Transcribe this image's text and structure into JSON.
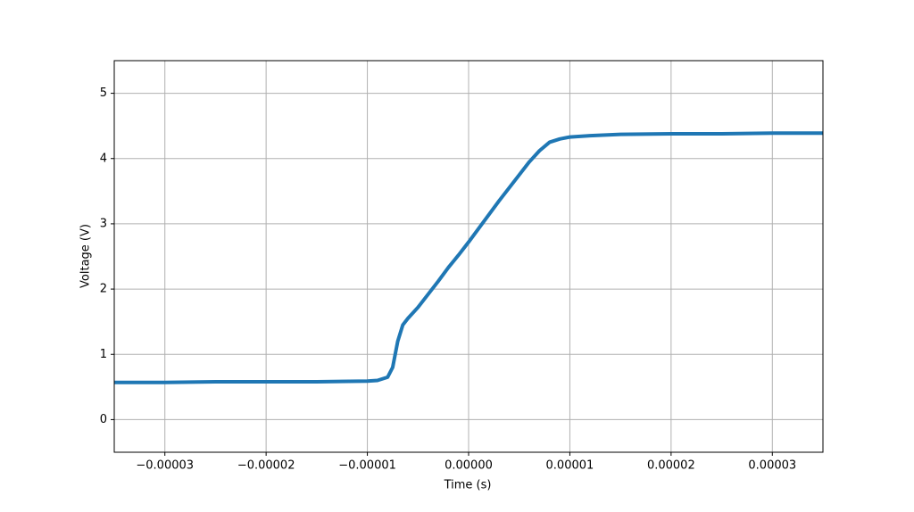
{
  "chart_data": {
    "type": "line",
    "xlabel": "Time (s)",
    "ylabel": "Voltage (V)",
    "x": [
      -3.5e-05,
      -3e-05,
      -2.5e-05,
      -2e-05,
      -1.5e-05,
      -1e-05,
      -9e-06,
      -8e-06,
      -7.5e-06,
      -7e-06,
      -6.5e-06,
      -6e-06,
      -5e-06,
      -4e-06,
      -3e-06,
      -2e-06,
      -1e-06,
      0,
      1e-06,
      2e-06,
      3e-06,
      4e-06,
      5e-06,
      6e-06,
      7e-06,
      8e-06,
      9e-06,
      1e-05,
      1.2e-05,
      1.5e-05,
      2e-05,
      2.5e-05,
      3e-05,
      3.5e-05
    ],
    "series": [
      {
        "color": "#1f77b4",
        "values": [
          0.57,
          0.57,
          0.58,
          0.58,
          0.58,
          0.59,
          0.6,
          0.65,
          0.8,
          1.2,
          1.45,
          1.55,
          1.72,
          1.92,
          2.12,
          2.33,
          2.52,
          2.72,
          2.93,
          3.14,
          3.35,
          3.55,
          3.75,
          3.95,
          4.12,
          4.25,
          4.3,
          4.33,
          4.35,
          4.37,
          4.38,
          4.38,
          4.39,
          4.39
        ]
      }
    ],
    "xlim": [
      -3.5e-05,
      3.5e-05
    ],
    "xticks": [
      {
        "value": -3e-05,
        "label": "−0.00003"
      },
      {
        "value": -2e-05,
        "label": "−0.00002"
      },
      {
        "value": -1e-05,
        "label": "−0.00001"
      },
      {
        "value": 0,
        "label": "0.00000"
      },
      {
        "value": 1e-05,
        "label": "0.00001"
      },
      {
        "value": 2e-05,
        "label": "0.00002"
      },
      {
        "value": 3e-05,
        "label": "0.00003"
      }
    ],
    "ylim": [
      -0.5,
      5.5
    ],
    "yticks": [
      0,
      1,
      2,
      3,
      4,
      5
    ],
    "grid": true
  }
}
